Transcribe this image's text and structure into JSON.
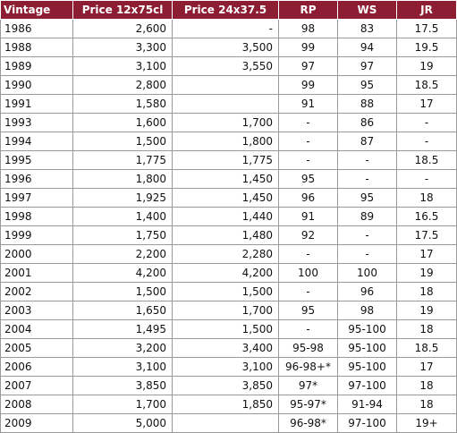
{
  "colors": {
    "header_background": "#8d1d32",
    "header_text": "#ffffff",
    "grid_line": "#9a9a9a"
  },
  "table": {
    "headers": [
      "Vintage",
      "Price 12x75cl",
      "Price 24x37.5",
      "RP",
      "WS",
      "JR"
    ],
    "rows": [
      [
        "1986",
        "2,600",
        "-",
        "98",
        "83",
        "17.5"
      ],
      [
        "1988",
        "3,300",
        "3,500",
        "99",
        "94",
        "19.5"
      ],
      [
        "1989",
        "3,100",
        "3,550",
        "97",
        "97",
        "19"
      ],
      [
        "1990",
        "2,800",
        "",
        "99",
        "95",
        "18.5"
      ],
      [
        "1991",
        "1,580",
        "",
        "91",
        "88",
        "17"
      ],
      [
        "1993",
        "1,600",
        "1,700",
        "-",
        "86",
        "-"
      ],
      [
        "1994",
        "1,500",
        "1,800",
        "-",
        "87",
        "-"
      ],
      [
        "1995",
        "1,775",
        "1,775",
        "-",
        "-",
        "18.5"
      ],
      [
        "1996",
        "1,800",
        "1,450",
        "95",
        "-",
        "-"
      ],
      [
        "1997",
        "1,925",
        "1,450",
        "96",
        "95",
        "18"
      ],
      [
        "1998",
        "1,400",
        "1,440",
        "91",
        "89",
        "16.5"
      ],
      [
        "1999",
        "1,750",
        "1,480",
        "92",
        "-",
        "17.5"
      ],
      [
        "2000",
        "2,200",
        "2,280",
        "-",
        "-",
        "17"
      ],
      [
        "2001",
        "4,200",
        "4,200",
        "100",
        "100",
        "19"
      ],
      [
        "2002",
        "1,500",
        "1,500",
        "-",
        "96",
        "18"
      ],
      [
        "2003",
        "1,650",
        "1,700",
        "95",
        "98",
        "19"
      ],
      [
        "2004",
        "1,495",
        "1,500",
        "-",
        "95-100",
        "18"
      ],
      [
        "2005",
        "3,200",
        "3,400",
        "95-98",
        "95-100",
        "18.5"
      ],
      [
        "2006",
        "3,100",
        "3,100",
        "96-98+*",
        "95-100",
        "17"
      ],
      [
        "2007",
        "3,850",
        "3,850",
        "97*",
        "97-100",
        "18"
      ],
      [
        "2008",
        "1,700",
        "1,850",
        "95-97*",
        "91-94",
        "18"
      ],
      [
        "2009",
        "5,000",
        "",
        "96-98*",
        "97-100",
        "19+"
      ]
    ]
  }
}
